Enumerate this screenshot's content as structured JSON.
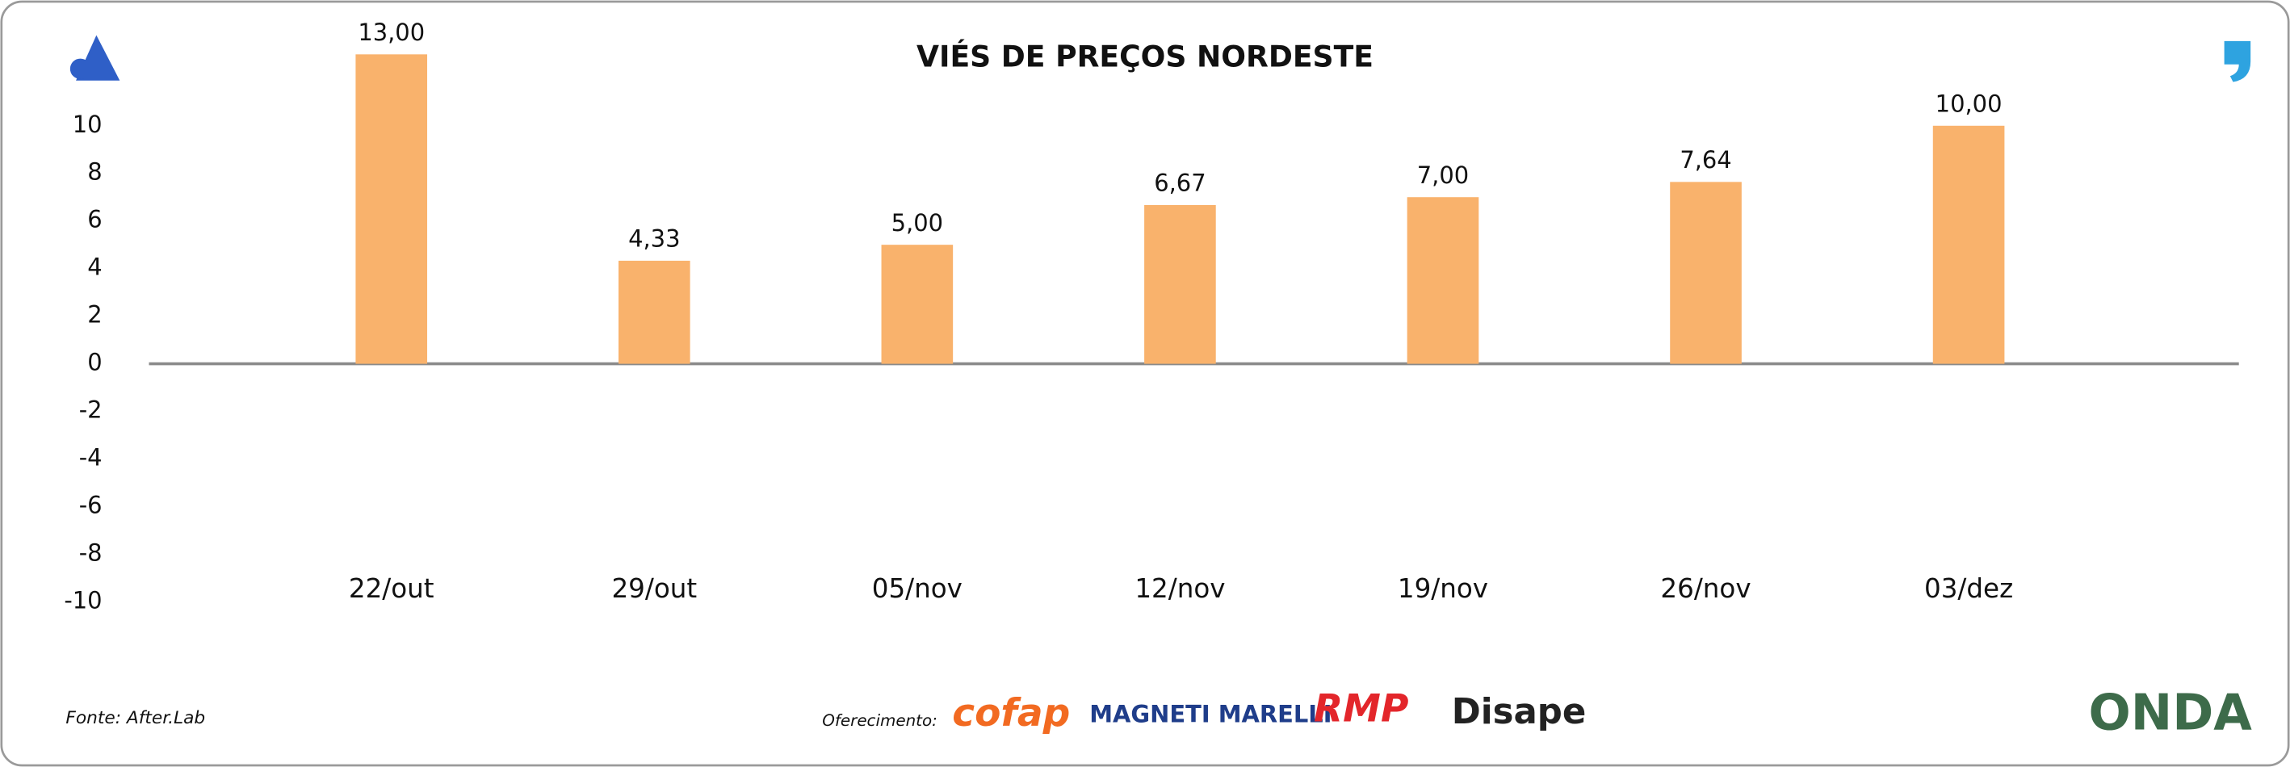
{
  "chart_data": {
    "type": "bar",
    "title": "VIÉS DE PREÇOS NORDESTE",
    "categories": [
      "22/out",
      "29/out",
      "05/nov",
      "12/nov",
      "19/nov",
      "26/nov",
      "03/dez"
    ],
    "values": [
      13,
      4.33,
      5,
      6.67,
      7,
      7.64,
      10
    ],
    "value_labels": [
      "13,00",
      "4,33",
      "5,00",
      "6,67",
      "7,00",
      "7,64",
      "10,00"
    ],
    "color": "#f9b26c",
    "ylim": [
      -10,
      10
    ],
    "yticks": [
      -10,
      -8,
      -6,
      -4,
      -2,
      0,
      2,
      4,
      6,
      8,
      10
    ],
    "grid": false
  },
  "footer": {
    "source": "Fonte: After.Lab",
    "sponsor_label": "Oferecimento:",
    "sponsors": [
      "cofap",
      "MAGNETI MARELLI",
      "RMP",
      "Disape"
    ],
    "brand": "ONDA"
  }
}
